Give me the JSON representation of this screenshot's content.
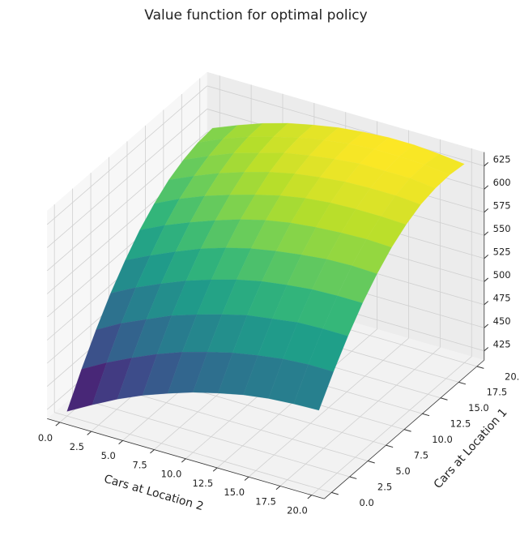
{
  "chart_data": {
    "type": "surface",
    "title": "Value function for optimal policy",
    "x_label": "Cars at Location 2",
    "y_label": "Cars at Location 1",
    "colormap": "viridis",
    "x": [
      0,
      2,
      4,
      6,
      8,
      10,
      12,
      14,
      16,
      18,
      20
    ],
    "y": [
      0,
      2,
      4,
      6,
      8,
      10,
      12,
      14,
      16,
      18,
      20
    ],
    "z": [
      [
        420,
        435,
        449,
        461,
        471,
        480,
        487,
        493,
        497,
        499,
        500
      ],
      [
        452,
        467,
        480,
        492,
        502,
        510,
        517,
        522,
        526,
        528,
        528
      ],
      [
        481,
        496,
        508,
        520,
        529,
        537,
        544,
        548,
        552,
        553,
        553
      ],
      [
        507,
        521,
        533,
        544,
        553,
        561,
        567,
        571,
        574,
        575,
        575
      ],
      [
        529,
        542,
        554,
        565,
        574,
        581,
        586,
        590,
        593,
        594,
        593
      ],
      [
        548,
        561,
        572,
        582,
        591,
        598,
        603,
        606,
        608,
        609,
        608
      ],
      [
        563,
        576,
        587,
        596,
        604,
        611,
        616,
        619,
        620,
        620,
        619
      ],
      [
        575,
        587,
        598,
        607,
        615,
        621,
        625,
        628,
        629,
        629,
        627
      ],
      [
        583,
        595,
        606,
        614,
        622,
        627,
        631,
        634,
        634,
        634,
        631
      ],
      [
        588,
        600,
        610,
        618,
        625,
        630,
        634,
        636,
        636,
        635,
        632
      ],
      [
        590,
        601,
        611,
        619,
        625,
        630,
        633,
        635,
        635,
        633,
        630
      ]
    ],
    "xlim": [
      -1,
      21
    ],
    "ylim": [
      -1,
      21
    ],
    "zlim": [
      415,
      640
    ],
    "xticks": [
      {
        "value": 0,
        "label": "0.0"
      },
      {
        "value": 2.5,
        "label": "2.5"
      },
      {
        "value": 5,
        "label": "5.0"
      },
      {
        "value": 7.5,
        "label": "7.5"
      },
      {
        "value": 10,
        "label": "10.0"
      },
      {
        "value": 12.5,
        "label": "12.5"
      },
      {
        "value": 15,
        "label": "15.0"
      },
      {
        "value": 17.5,
        "label": "17.5"
      },
      {
        "value": 20,
        "label": "20.0"
      }
    ],
    "yticks": [
      {
        "value": 0,
        "label": "0.0"
      },
      {
        "value": 2.5,
        "label": "2.5"
      },
      {
        "value": 5,
        "label": "5.0"
      },
      {
        "value": 7.5,
        "label": "7.5"
      },
      {
        "value": 10,
        "label": "10.0"
      },
      {
        "value": 12.5,
        "label": "12.5"
      },
      {
        "value": 15,
        "label": "15.0"
      },
      {
        "value": 17.5,
        "label": "17.5"
      },
      {
        "value": 20,
        "label": "20.0"
      }
    ],
    "zticks": [
      425,
      450,
      475,
      500,
      525,
      550,
      575,
      600,
      625
    ],
    "grid": true
  }
}
